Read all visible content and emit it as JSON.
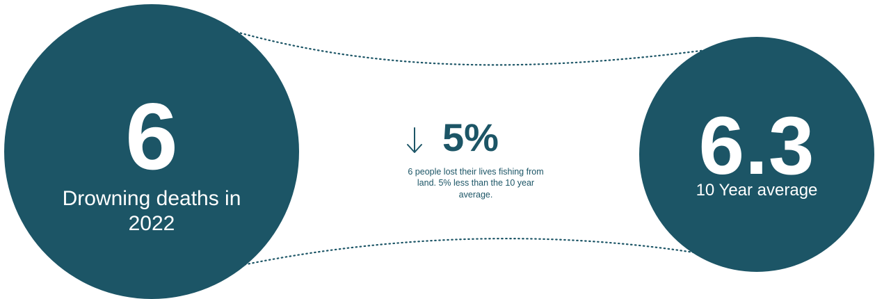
{
  "colors": {
    "primary": "#1c5566",
    "text_on_primary": "#ffffff",
    "background": "#ffffff"
  },
  "left_stat": {
    "value": "6",
    "label": "Drowning deaths in 2022"
  },
  "change": {
    "icon": "down-arrow-icon",
    "value": "5%",
    "caption": "6 people lost their lives fishing from land. 5% less than the 10 year average."
  },
  "right_stat": {
    "value": "6.3",
    "label": "10 Year average"
  }
}
